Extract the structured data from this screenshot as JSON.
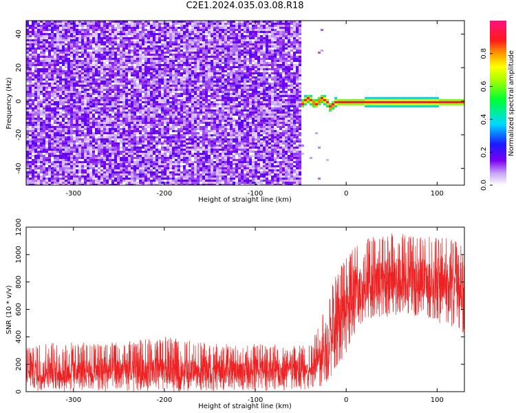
{
  "title": "C2E1.2024.035.03.08.R18",
  "colors": {
    "snr_line": "#ee2222",
    "spectrum_palette": "rainbow (white to purple to blue to cyan to green to yellow to orange to red to magenta)"
  },
  "chart_data": [
    {
      "type": "heatmap",
      "title": "",
      "xlabel": "Height of straight line (km)",
      "ylabel": "Frequency (Hz)",
      "xlim": [
        -352,
        130
      ],
      "ylim": [
        -50,
        48
      ],
      "xticks": [
        "-300",
        "-200",
        "-100",
        "0",
        "100"
      ],
      "yticks": [
        "-40",
        "-20",
        "0",
        "20",
        "40"
      ],
      "colorbar": {
        "label": "Normalized spectral amplitude",
        "range": [
          0,
          1
        ],
        "ticks": [
          "0.0",
          "0.2",
          "0.4",
          "0.6",
          "0.8"
        ]
      },
      "regions": [
        {
          "x_from": -352,
          "x_to": -52,
          "description": "broadband noise across all frequencies, amplitude about 0.05-0.2"
        },
        {
          "x_from": -52,
          "x_to": 130,
          "description": "narrow tone near 0 Hz, amplitude about 0.6-1.0"
        }
      ],
      "grid": false
    },
    {
      "type": "line",
      "title": "",
      "xlabel": "Height of straight line (km)",
      "ylabel": "SNR (10 * v/v)",
      "xlim": [
        -352,
        130
      ],
      "ylim": [
        0,
        1200
      ],
      "xticks": [
        "-300",
        "-200",
        "-100",
        "0",
        "100"
      ],
      "yticks": [
        "0",
        "200",
        "400",
        "600",
        "800",
        "1000",
        "1200"
      ],
      "series": [
        {
          "x": [
            -350,
            -300,
            -250,
            -200,
            -150,
            -100,
            -60,
            -40,
            -30,
            -20,
            -10,
            0,
            10,
            20,
            40,
            60,
            80,
            100,
            120,
            128
          ],
          "y_mid": [
            140,
            140,
            140,
            140,
            145,
            150,
            155,
            160,
            220,
            350,
            520,
            620,
            700,
            760,
            800,
            820,
            810,
            790,
            780,
            770
          ],
          "y_min": [
            20,
            20,
            20,
            20,
            25,
            25,
            30,
            30,
            50,
            100,
            200,
            300,
            420,
            520,
            560,
            580,
            560,
            520,
            480,
            450
          ],
          "y_max": [
            320,
            350,
            340,
            380,
            330,
            330,
            320,
            330,
            480,
            700,
            850,
            950,
            1050,
            1100,
            1120,
            1160,
            1130,
            1100,
            1100,
            1080
          ]
        }
      ],
      "grid": false
    }
  ]
}
